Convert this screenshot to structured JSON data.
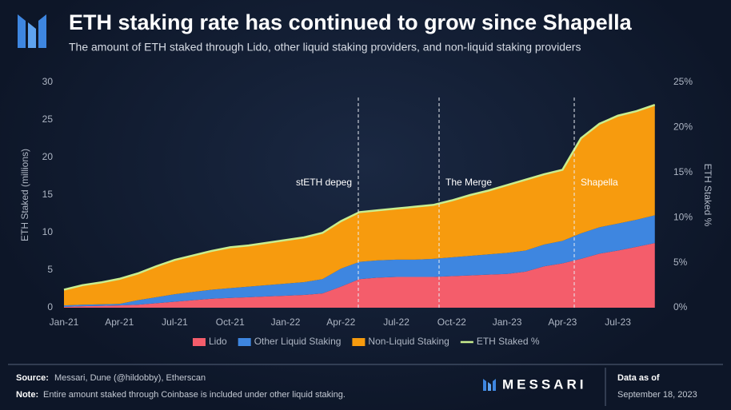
{
  "chart_data": {
    "type": "stacked-area",
    "title": "ETH staking rate has continued to grow since Shapella",
    "subtitle": "The amount of ETH staked through Lido, other liquid staking providers, and non-liquid staking providers",
    "ylabel": "ETH Staked (millions)",
    "y2label": "ETH Staked %",
    "categories": [
      "Jan-21",
      null,
      null,
      "Apr-21",
      null,
      null,
      "Jul-21",
      null,
      null,
      "Oct-21",
      null,
      null,
      "Jan-22",
      null,
      null,
      "Apr-22",
      null,
      null,
      "Jul-22",
      null,
      null,
      "Oct-22",
      null,
      null,
      "Jan-23",
      null,
      null,
      "Apr-23",
      null,
      null,
      "Jul-23",
      null,
      null
    ],
    "series": [
      {
        "name": "Lido",
        "color": "#f45d6b",
        "values": [
          0.1,
          0.2,
          0.25,
          0.3,
          0.4,
          0.6,
          0.8,
          1.0,
          1.2,
          1.3,
          1.4,
          1.5,
          1.6,
          1.7,
          1.9,
          2.8,
          3.8,
          4.0,
          4.1,
          4.1,
          4.1,
          4.2,
          4.3,
          4.4,
          4.5,
          4.8,
          5.5,
          5.9,
          6.5,
          7.2,
          7.6,
          8.1,
          8.6
        ]
      },
      {
        "name": "Other Liquid Staking",
        "color": "#3e86e0",
        "values": [
          0.2,
          0.2,
          0.2,
          0.2,
          0.6,
          0.8,
          1.0,
          1.1,
          1.2,
          1.3,
          1.4,
          1.5,
          1.6,
          1.7,
          1.9,
          2.4,
          2.3,
          2.3,
          2.3,
          2.3,
          2.4,
          2.5,
          2.6,
          2.7,
          2.8,
          2.8,
          2.9,
          3.0,
          3.4,
          3.5,
          3.6,
          3.6,
          3.7
        ]
      },
      {
        "name": "Non-Liquid Staking",
        "color": "#f79b0e",
        "values": [
          2.1,
          2.6,
          2.95,
          3.3,
          3.5,
          4.1,
          4.5,
          4.9,
          5.2,
          5.4,
          5.5,
          5.6,
          5.8,
          6.0,
          6.1,
          6.3,
          6.6,
          6.7,
          6.8,
          7.0,
          7.2,
          7.6,
          8.1,
          8.5,
          9.0,
          9.4,
          9.4,
          9.5,
          12.6,
          13.8,
          14.3,
          14.5,
          14.7
        ]
      },
      {
        "name": "ETH Staked %",
        "color": "#c9ee8e",
        "axis": "y2",
        "values": [
          2.0,
          2.5,
          2.8,
          3.2,
          3.8,
          4.6,
          5.3,
          5.8,
          6.3,
          6.7,
          6.9,
          7.2,
          7.5,
          7.8,
          8.3,
          9.6,
          10.6,
          10.8,
          11.0,
          11.2,
          11.4,
          11.9,
          12.5,
          13.0,
          13.6,
          14.2,
          14.8,
          15.3,
          18.8,
          20.4,
          21.3,
          21.8,
          22.5
        ]
      }
    ],
    "ylim": [
      0,
      30
    ],
    "yticks": [
      0,
      5,
      10,
      15,
      20,
      25,
      30
    ],
    "y2lim": [
      0,
      25
    ],
    "y2ticks": [
      {
        "value": 0,
        "label": "0%"
      },
      {
        "value": 5,
        "label": "5%"
      },
      {
        "value": 10,
        "label": "10%"
      },
      {
        "value": 15,
        "label": "15%"
      },
      {
        "value": 20,
        "label": "20%"
      },
      {
        "value": 25,
        "label": "25%"
      }
    ],
    "annotations": [
      "stETH depeg",
      "The Merge",
      "Shapella"
    ],
    "legend": "bottom"
  },
  "footer": {
    "source_label": "Source:",
    "source": "Messari, Dune (@hildobby), Etherscan",
    "note_label": "Note:",
    "note": "Entire amount staked through Coinbase is included under other liquid staking.",
    "brand": "MESSARI",
    "data_as_of": "Data as of",
    "date": "September 18, 2023"
  }
}
